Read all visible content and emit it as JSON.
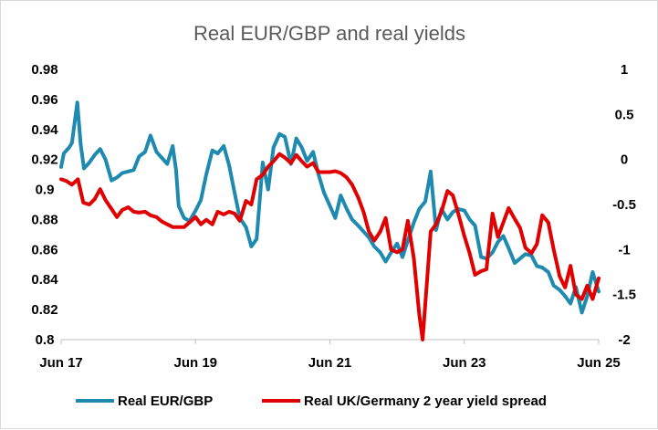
{
  "chart_data": {
    "type": "line",
    "title": "Real EUR/GBP and real yields",
    "x_ticks": [
      "Jun 17",
      "Jun 19",
      "Jun 21",
      "Jun 23",
      "Jun 25"
    ],
    "y_left": {
      "ticks": [
        "0.98",
        "0.96",
        "0.94",
        "0.92",
        "0.9",
        "0.88",
        "0.86",
        "0.84",
        "0.82",
        "0.8"
      ],
      "range": [
        0.8,
        0.98
      ]
    },
    "y_right": {
      "ticks": [
        "1",
        "0.5",
        "0",
        "-0.5",
        "-1",
        "-1.5",
        "-2"
      ],
      "range": [
        -2,
        1
      ]
    },
    "grid": false,
    "legend_position": "bottom",
    "series": [
      {
        "name": "Real EUR/GBP",
        "axis": "left",
        "color": "#1f8ab0",
        "points": [
          [
            2017.46,
            0.915
          ],
          [
            2017.5,
            0.924
          ],
          [
            2017.58,
            0.928
          ],
          [
            2017.62,
            0.931
          ],
          [
            2017.7,
            0.958
          ],
          [
            2017.75,
            0.93
          ],
          [
            2017.8,
            0.914
          ],
          [
            2017.88,
            0.918
          ],
          [
            2017.96,
            0.923
          ],
          [
            2018.04,
            0.927
          ],
          [
            2018.12,
            0.92
          ],
          [
            2018.21,
            0.906
          ],
          [
            2018.29,
            0.908
          ],
          [
            2018.37,
            0.911
          ],
          [
            2018.46,
            0.912
          ],
          [
            2018.54,
            0.913
          ],
          [
            2018.62,
            0.922
          ],
          [
            2018.71,
            0.925
          ],
          [
            2018.79,
            0.936
          ],
          [
            2018.88,
            0.925
          ],
          [
            2018.96,
            0.921
          ],
          [
            2019.04,
            0.917
          ],
          [
            2019.12,
            0.929
          ],
          [
            2019.17,
            0.913
          ],
          [
            2019.21,
            0.889
          ],
          [
            2019.29,
            0.881
          ],
          [
            2019.37,
            0.879
          ],
          [
            2019.46,
            0.886
          ],
          [
            2019.54,
            0.893
          ],
          [
            2019.62,
            0.91
          ],
          [
            2019.71,
            0.926
          ],
          [
            2019.79,
            0.924
          ],
          [
            2019.88,
            0.929
          ],
          [
            2019.96,
            0.916
          ],
          [
            2020.04,
            0.898
          ],
          [
            2020.12,
            0.881
          ],
          [
            2020.21,
            0.875
          ],
          [
            2020.29,
            0.862
          ],
          [
            2020.37,
            0.867
          ],
          [
            2020.46,
            0.918
          ],
          [
            2020.54,
            0.9
          ],
          [
            2020.62,
            0.928
          ],
          [
            2020.71,
            0.937
          ],
          [
            2020.79,
            0.935
          ],
          [
            2020.88,
            0.917
          ],
          [
            2020.96,
            0.934
          ],
          [
            2021.04,
            0.928
          ],
          [
            2021.12,
            0.919
          ],
          [
            2021.21,
            0.925
          ],
          [
            2021.29,
            0.91
          ],
          [
            2021.37,
            0.898
          ],
          [
            2021.46,
            0.889
          ],
          [
            2021.54,
            0.881
          ],
          [
            2021.62,
            0.896
          ],
          [
            2021.71,
            0.887
          ],
          [
            2021.79,
            0.88
          ],
          [
            2021.88,
            0.876
          ],
          [
            2021.96,
            0.872
          ],
          [
            2022.04,
            0.868
          ],
          [
            2022.12,
            0.862
          ],
          [
            2022.21,
            0.858
          ],
          [
            2022.29,
            0.852
          ],
          [
            2022.37,
            0.858
          ],
          [
            2022.46,
            0.864
          ],
          [
            2022.54,
            0.855
          ],
          [
            2022.62,
            0.866
          ],
          [
            2022.71,
            0.878
          ],
          [
            2022.79,
            0.887
          ],
          [
            2022.88,
            0.892
          ],
          [
            2022.96,
            0.912
          ],
          [
            2023.04,
            0.873
          ],
          [
            2023.12,
            0.887
          ],
          [
            2023.21,
            0.88
          ],
          [
            2023.29,
            0.885
          ],
          [
            2023.37,
            0.887
          ],
          [
            2023.46,
            0.886
          ],
          [
            2023.54,
            0.88
          ],
          [
            2023.62,
            0.876
          ],
          [
            2023.71,
            0.855
          ],
          [
            2023.79,
            0.854
          ],
          [
            2023.88,
            0.858
          ],
          [
            2023.96,
            0.865
          ],
          [
            2024.04,
            0.869
          ],
          [
            2024.12,
            0.861
          ],
          [
            2024.21,
            0.851
          ],
          [
            2024.29,
            0.854
          ],
          [
            2024.37,
            0.857
          ],
          [
            2024.46,
            0.856
          ],
          [
            2024.54,
            0.849
          ],
          [
            2024.62,
            0.848
          ],
          [
            2024.71,
            0.845
          ],
          [
            2024.79,
            0.836
          ],
          [
            2024.88,
            0.833
          ],
          [
            2024.96,
            0.829
          ],
          [
            2025.04,
            0.824
          ],
          [
            2025.12,
            0.835
          ],
          [
            2025.21,
            0.818
          ],
          [
            2025.29,
            0.829
          ],
          [
            2025.37,
            0.845
          ],
          [
            2025.46,
            0.832
          ]
        ]
      },
      {
        "name": "Real UK/Germany 2 year yield spread",
        "axis": "right",
        "color": "#e00000",
        "points": [
          [
            2017.46,
            -0.22
          ],
          [
            2017.54,
            -0.24
          ],
          [
            2017.62,
            -0.28
          ],
          [
            2017.71,
            -0.22
          ],
          [
            2017.79,
            -0.48
          ],
          [
            2017.88,
            -0.5
          ],
          [
            2017.96,
            -0.44
          ],
          [
            2018.04,
            -0.33
          ],
          [
            2018.12,
            -0.45
          ],
          [
            2018.21,
            -0.55
          ],
          [
            2018.29,
            -0.64
          ],
          [
            2018.37,
            -0.56
          ],
          [
            2018.46,
            -0.53
          ],
          [
            2018.54,
            -0.58
          ],
          [
            2018.62,
            -0.59
          ],
          [
            2018.71,
            -0.58
          ],
          [
            2018.79,
            -0.62
          ],
          [
            2018.88,
            -0.64
          ],
          [
            2018.96,
            -0.69
          ],
          [
            2019.04,
            -0.72
          ],
          [
            2019.12,
            -0.75
          ],
          [
            2019.21,
            -0.75
          ],
          [
            2019.29,
            -0.75
          ],
          [
            2019.37,
            -0.7
          ],
          [
            2019.46,
            -0.64
          ],
          [
            2019.54,
            -0.72
          ],
          [
            2019.62,
            -0.67
          ],
          [
            2019.71,
            -0.72
          ],
          [
            2019.79,
            -0.58
          ],
          [
            2019.88,
            -0.61
          ],
          [
            2019.96,
            -0.58
          ],
          [
            2020.04,
            -0.6
          ],
          [
            2020.12,
            -0.68
          ],
          [
            2020.21,
            -0.46
          ],
          [
            2020.29,
            -0.5
          ],
          [
            2020.37,
            -0.22
          ],
          [
            2020.46,
            -0.17
          ],
          [
            2020.54,
            -0.08
          ],
          [
            2020.62,
            -0.02
          ],
          [
            2020.71,
            0.06
          ],
          [
            2020.79,
            0.02
          ],
          [
            2020.88,
            -0.04
          ],
          [
            2020.96,
            0.05
          ],
          [
            2021.04,
            -0.02
          ],
          [
            2021.12,
            -0.08
          ],
          [
            2021.21,
            -0.04
          ],
          [
            2021.29,
            -0.14
          ],
          [
            2021.37,
            -0.14
          ],
          [
            2021.46,
            -0.14
          ],
          [
            2021.54,
            -0.13
          ],
          [
            2021.62,
            -0.15
          ],
          [
            2021.71,
            -0.2
          ],
          [
            2021.79,
            -0.28
          ],
          [
            2021.88,
            -0.42
          ],
          [
            2021.96,
            -0.58
          ],
          [
            2022.04,
            -0.8
          ],
          [
            2022.12,
            -0.9
          ],
          [
            2022.21,
            -0.8
          ],
          [
            2022.29,
            -0.65
          ],
          [
            2022.37,
            -1.0
          ],
          [
            2022.46,
            -1.03
          ],
          [
            2022.54,
            -1.0
          ],
          [
            2022.62,
            -0.68
          ],
          [
            2022.71,
            -1.1
          ],
          [
            2022.79,
            -1.72
          ],
          [
            2022.84,
            -2.0
          ],
          [
            2022.92,
            -1.2
          ],
          [
            2022.96,
            -0.8
          ],
          [
            2023.04,
            -0.72
          ],
          [
            2023.12,
            -0.58
          ],
          [
            2023.21,
            -0.35
          ],
          [
            2023.29,
            -0.4
          ],
          [
            2023.37,
            -0.6
          ],
          [
            2023.46,
            -0.85
          ],
          [
            2023.54,
            -1.04
          ],
          [
            2023.62,
            -1.28
          ],
          [
            2023.71,
            -1.24
          ],
          [
            2023.79,
            -1.22
          ],
          [
            2023.88,
            -0.6
          ],
          [
            2023.96,
            -0.86
          ],
          [
            2024.04,
            -0.7
          ],
          [
            2024.12,
            -0.54
          ],
          [
            2024.21,
            -0.66
          ],
          [
            2024.29,
            -0.76
          ],
          [
            2024.37,
            -0.98
          ],
          [
            2024.46,
            -1.04
          ],
          [
            2024.54,
            -0.94
          ],
          [
            2024.62,
            -0.62
          ],
          [
            2024.71,
            -0.7
          ],
          [
            2024.79,
            -1.0
          ],
          [
            2024.88,
            -1.3
          ],
          [
            2024.96,
            -1.42
          ],
          [
            2025.04,
            -1.18
          ],
          [
            2025.12,
            -1.5
          ],
          [
            2025.21,
            -1.55
          ],
          [
            2025.29,
            -1.4
          ],
          [
            2025.37,
            -1.55
          ],
          [
            2025.46,
            -1.32
          ]
        ]
      }
    ]
  }
}
